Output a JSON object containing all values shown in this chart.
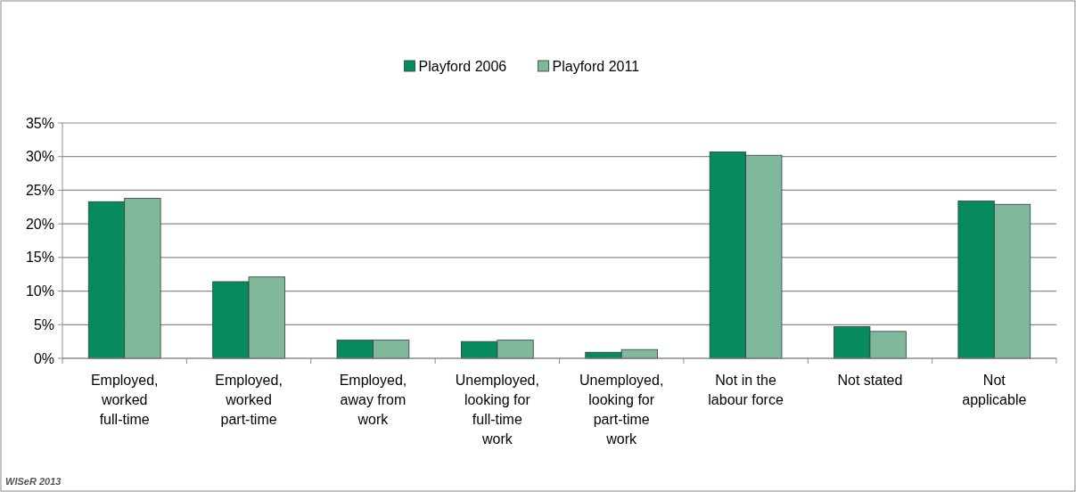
{
  "chart_data": {
    "type": "bar",
    "categories": [
      "Employed, worked full-time",
      "Employed, worked part-time",
      "Employed, away from work",
      "Unemployed, looking for full-time work",
      "Unemployed, looking for part-time work",
      "Not in the labour force",
      "Not stated",
      "Not applicable"
    ],
    "series": [
      {
        "name": "Playford 2006",
        "color": "#078a5e",
        "values": [
          23.3,
          11.4,
          2.7,
          2.5,
          0.9,
          30.7,
          4.7,
          23.4
        ]
      },
      {
        "name": "Playford 2011",
        "color": "#7fb89a",
        "values": [
          23.8,
          12.1,
          2.7,
          2.7,
          1.3,
          30.2,
          4.0,
          22.9
        ]
      }
    ],
    "ylim": [
      0,
      35
    ],
    "yticks": [
      {
        "value": 0,
        "label": "0%"
      },
      {
        "value": 5,
        "label": "5%"
      },
      {
        "value": 10,
        "label": "10%"
      },
      {
        "value": 15,
        "label": "15%"
      },
      {
        "value": 20,
        "label": "20%"
      },
      {
        "value": 25,
        "label": "25%"
      },
      {
        "value": 30,
        "label": "30%"
      },
      {
        "value": 35,
        "label": "35%"
      }
    ],
    "grid": "y",
    "legend": "top",
    "annotations": [
      "WISeR 2013"
    ]
  }
}
